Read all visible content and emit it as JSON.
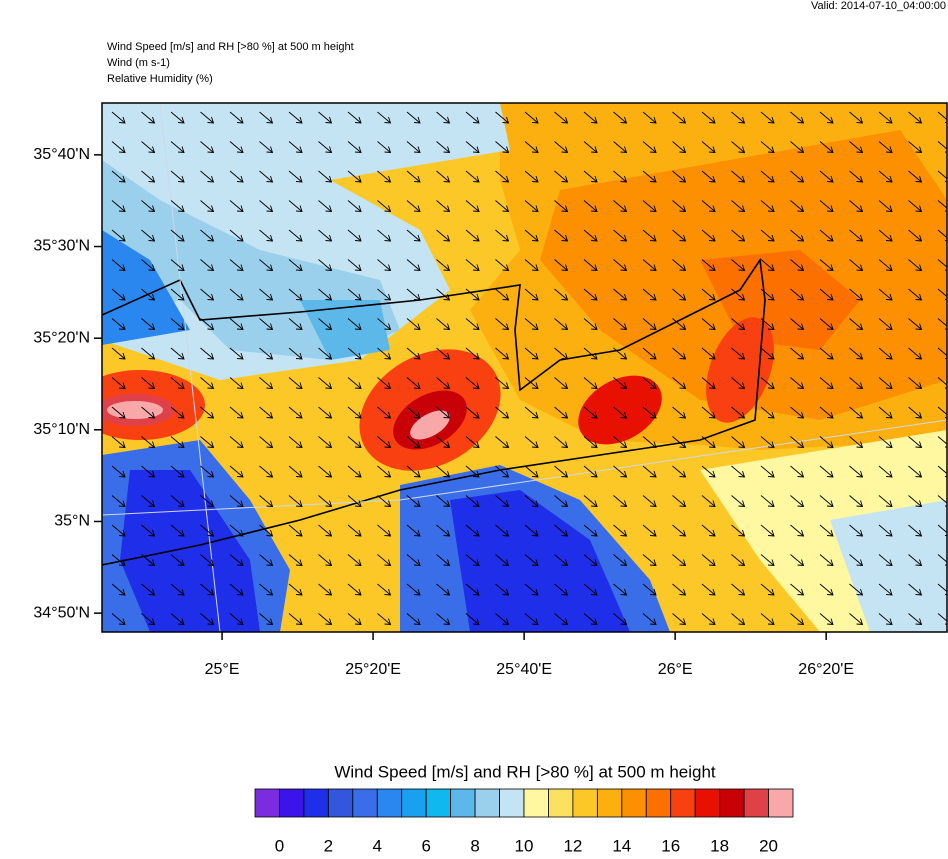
{
  "valid": "Valid: 2014-07-10_04:00:00",
  "header": [
    "Wind Speed [m/s] and RH [>80 %] at 500 m height",
    "Wind   (m s-1)",
    "Relative Humidity   (%)"
  ],
  "chart_data": {
    "type": "map",
    "xlim": [
      24.735,
      26.6
    ],
    "ylim": [
      34.799,
      35.761
    ],
    "xticks": [
      {
        "value": 25,
        "label": "25°E"
      },
      {
        "value": 25.3333,
        "label": "25°20'E"
      },
      {
        "value": 25.6667,
        "label": "25°40'E"
      },
      {
        "value": 26,
        "label": "26°E"
      },
      {
        "value": 26.3333,
        "label": "26°20'E"
      }
    ],
    "yticks": [
      {
        "value": 34.8333,
        "label": "34°50'N"
      },
      {
        "value": 35,
        "label": "35°N"
      },
      {
        "value": 35.1667,
        "label": "35°10'N"
      },
      {
        "value": 35.3333,
        "label": "35°20'N"
      },
      {
        "value": 35.5,
        "label": "35°30'N"
      },
      {
        "value": 35.6667,
        "label": "35°40'N"
      }
    ],
    "colorbar": {
      "title": "Wind Speed [m/s] and RH [>80 %] at 500 m height",
      "range": [
        -1,
        21
      ],
      "colors": [
        "#7b2be0",
        "#3a14e8",
        "#1f2ee8",
        "#3356dc",
        "#3a6ee8",
        "#2a87f0",
        "#1aa0f0",
        "#10b8f0",
        "#5cb8e8",
        "#9ad0ec",
        "#c4e4f4",
        "#fff8a0",
        "#fce060",
        "#fcc828",
        "#fcb010",
        "#fc9000",
        "#fc7000",
        "#f84010",
        "#e81000",
        "#c80008",
        "#e04048",
        "#f8a8a8"
      ],
      "ticks": [
        0,
        2,
        4,
        6,
        8,
        10,
        12,
        14,
        16,
        18,
        20
      ]
    }
  }
}
